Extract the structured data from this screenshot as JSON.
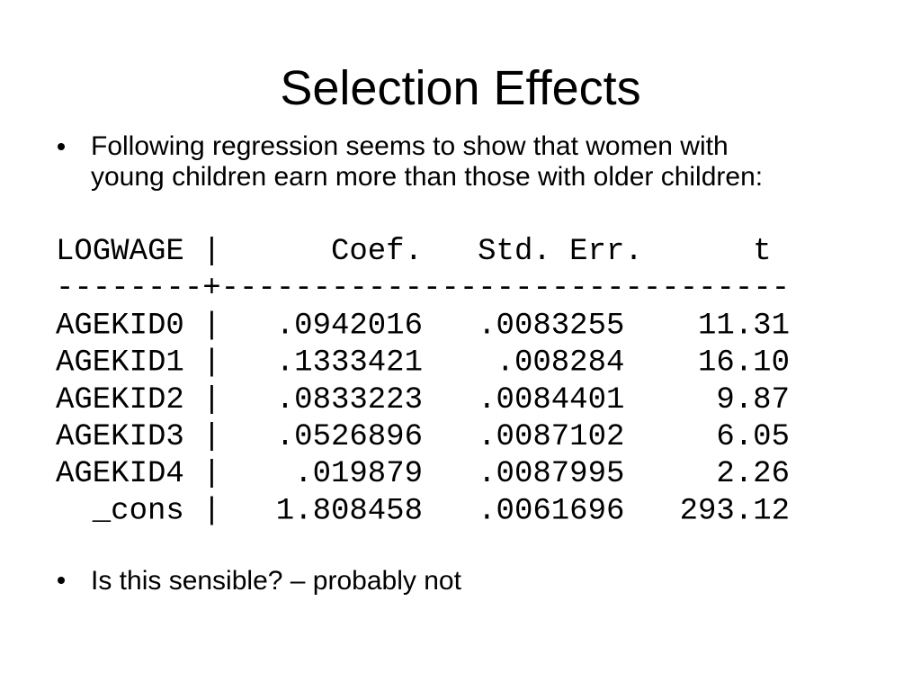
{
  "title": "Selection Effects",
  "bullets": [
    "Following regression seems to show that women with",
    "young children earn more than those with older children:"
  ],
  "table": {
    "header": [
      "LOGWAGE",
      "Coef.",
      "Std. Err.",
      "t"
    ],
    "column_separator": "|",
    "divider": "--------+-------------------------------",
    "rows": [
      [
        "AGEKID0",
        ".0942016",
        ".0083255",
        "11.31"
      ],
      [
        "AGEKID1",
        ".1333421",
        ".008284",
        "16.10"
      ],
      [
        "AGEKID2",
        ".0833223",
        ".0084401",
        "9.87"
      ],
      [
        "AGEKID3",
        ".0526896",
        ".0087102",
        "6.05"
      ],
      [
        "AGEKID4",
        ".019879",
        ".0087995",
        "2.26"
      ],
      [
        "_cons",
        "1.808458",
        ".0061696",
        "293.12"
      ]
    ]
  },
  "closing_bullet": "Is this sensible? – probably not"
}
